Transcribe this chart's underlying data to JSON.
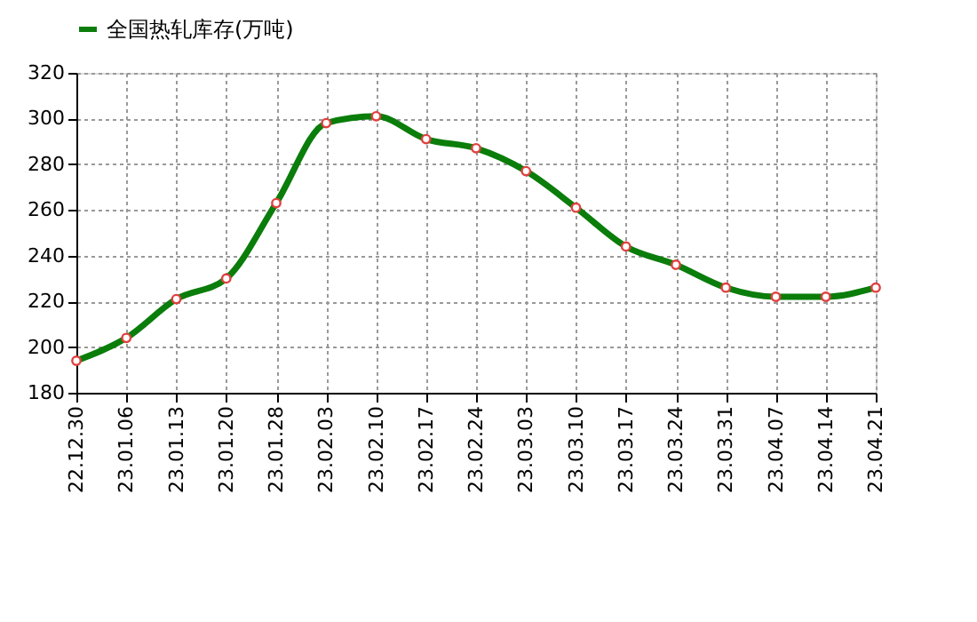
{
  "chart_data": {
    "type": "line",
    "categories": [
      "22.12.30",
      "23.01.06",
      "23.01.13",
      "23.01.20",
      "23.01.28",
      "23.02.03",
      "23.02.10",
      "23.02.17",
      "23.02.24",
      "23.03.03",
      "23.03.10",
      "23.03.17",
      "23.03.24",
      "23.03.31",
      "23.04.07",
      "23.04.14",
      "23.04.21"
    ],
    "series": [
      {
        "name": "全国热轧库存(万吨)",
        "color": "#0a7d0a",
        "values": [
          194,
          204,
          221,
          230,
          263,
          298,
          301,
          291,
          287,
          277,
          261,
          244,
          236,
          226,
          222,
          222,
          226
        ]
      }
    ],
    "ylim": [
      180,
      320
    ],
    "yticks": [
      180,
      200,
      220,
      240,
      260,
      280,
      300,
      320
    ],
    "grid": true,
    "legend": "top",
    "marker": "circle",
    "line_style": "solid"
  }
}
